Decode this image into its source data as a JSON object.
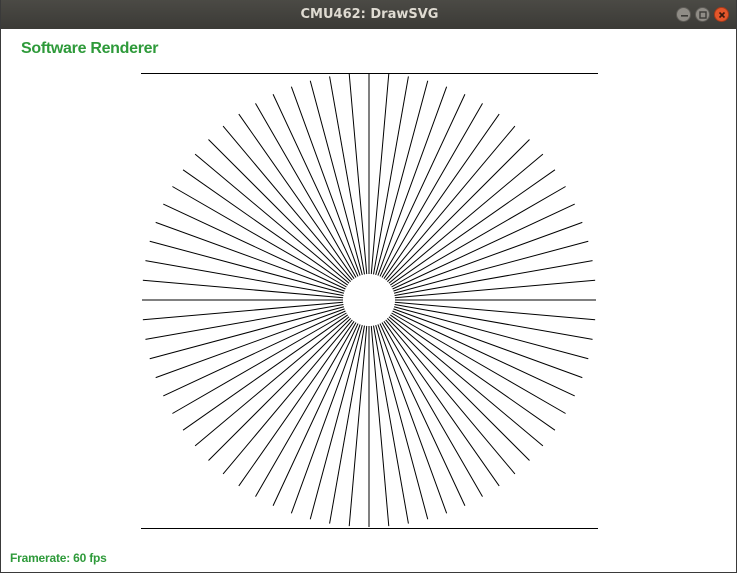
{
  "window": {
    "title": "CMU462: DrawSVG"
  },
  "renderer": {
    "label": "Software Renderer"
  },
  "status": {
    "framerate": "Framerate: 60 fps"
  },
  "scene": {
    "shape": "line starburst",
    "line_count": 72,
    "line_color": "#000000",
    "border_color": "#000000"
  },
  "colors": {
    "accent_text": "#2e9a3a",
    "titlebar": "#3f3e3a",
    "close_button": "#e4562b"
  },
  "icons": [
    "minimize-icon",
    "maximize-icon",
    "close-icon"
  ]
}
